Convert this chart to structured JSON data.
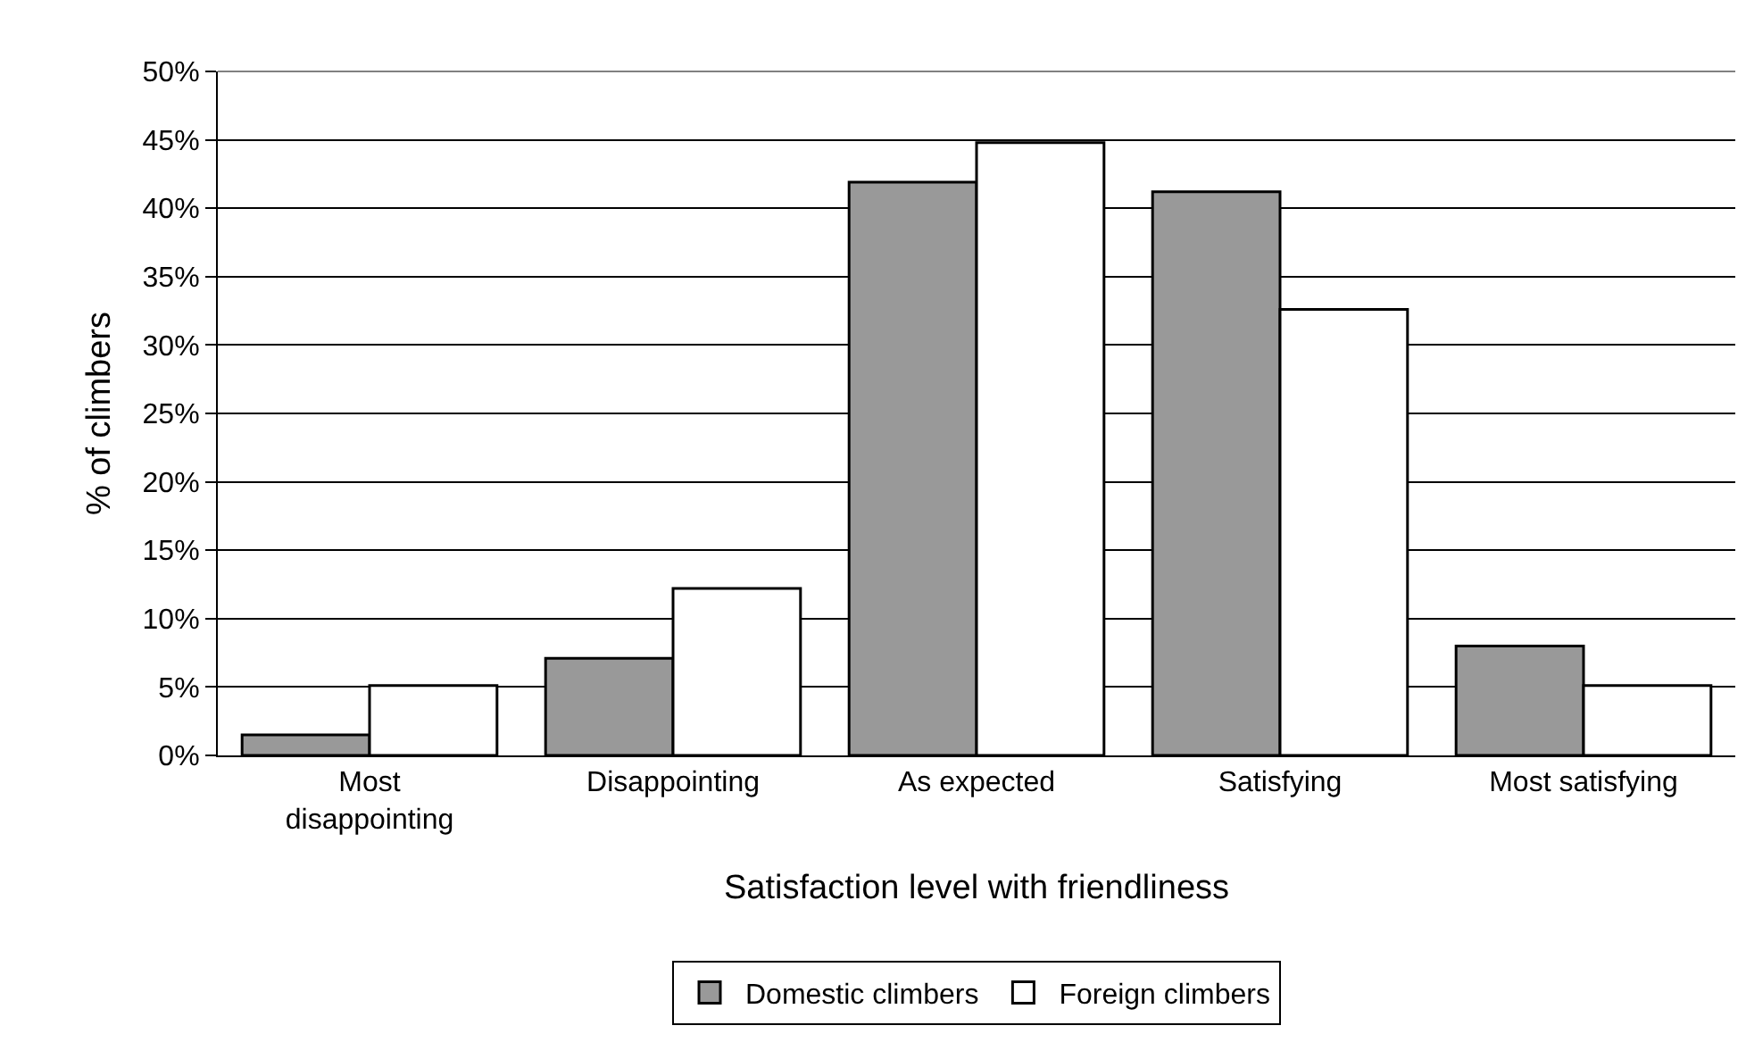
{
  "chart_data": {
    "type": "bar",
    "xlabel": "Satisfaction level with friendliness",
    "ylabel": "% of climbers",
    "categories": [
      "Most disappointing",
      "Disappointing",
      "As expected",
      "Satisfying",
      "Most satisfying"
    ],
    "series": [
      {
        "name": "Domestic climbers",
        "color": "#999999",
        "values": [
          1.5,
          7.1,
          41.9,
          41.2,
          8.0
        ]
      },
      {
        "name": "Foreign climbers",
        "color": "#ffffff",
        "values": [
          5.1,
          12.2,
          44.8,
          32.6,
          5.1
        ]
      }
    ],
    "ylim": [
      0,
      50
    ],
    "yticks": [
      {
        "value": 0,
        "label": "0%"
      },
      {
        "value": 5,
        "label": "5%"
      },
      {
        "value": 10,
        "label": "10%"
      },
      {
        "value": 15,
        "label": "15%"
      },
      {
        "value": 20,
        "label": "20%"
      },
      {
        "value": 25,
        "label": "25%"
      },
      {
        "value": 30,
        "label": "30%"
      },
      {
        "value": 35,
        "label": "35%"
      },
      {
        "value": 40,
        "label": "40%"
      },
      {
        "value": 45,
        "label": "45%"
      },
      {
        "value": 50,
        "label": "50%"
      }
    ],
    "grid": "y",
    "legend": "bottom"
  }
}
